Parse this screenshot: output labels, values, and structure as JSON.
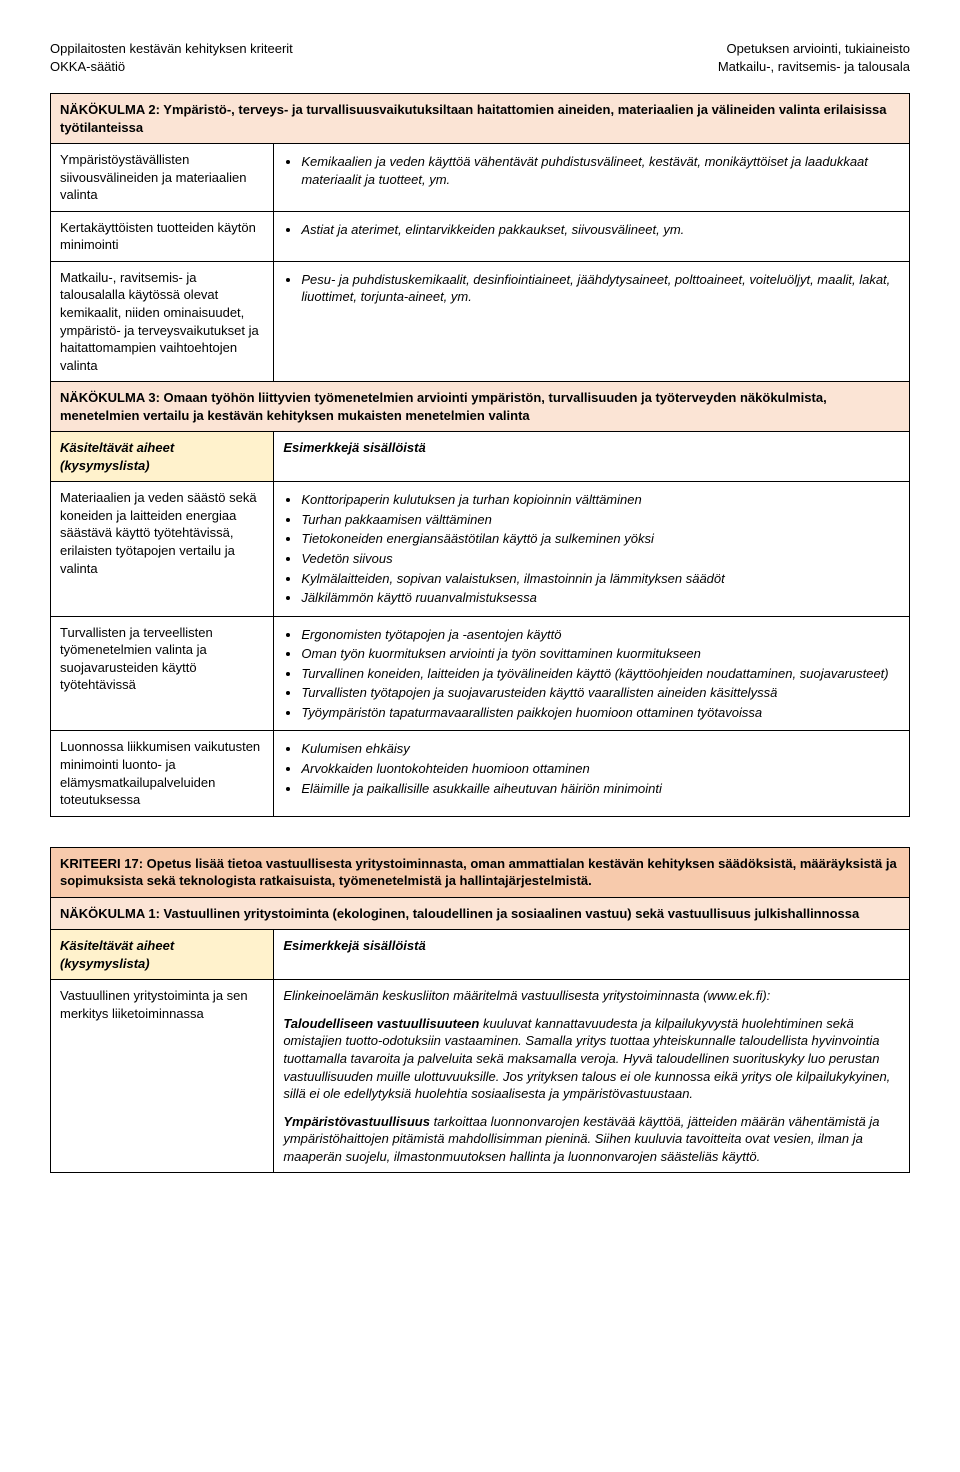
{
  "header": {
    "left_line1": "Oppilaitosten kestävän kehityksen kriteerit",
    "left_line2": "OKKA-säätiö",
    "right_line1": "Opetuksen arviointi, tukiaineisto",
    "right_line2": "Matkailu-, ravitsemis- ja talousala"
  },
  "table1": {
    "nakokulma2_title": "NÄKÖKULMA 2: Ympäristö-, terveys- ja turvallisuusvaikutuksiltaan haitattomien aineiden, materiaalien ja välineiden valinta erilaisissa työtilanteissa",
    "row1_left": "Ympäristöystävällisten siivousvälineiden ja materiaalien valinta",
    "row1_bullets": [
      "Kemikaalien ja veden käyttöä vähentävät puhdistusvälineet, kestävät, monikäyttöiset ja laadukkaat materiaalit ja tuotteet, ym."
    ],
    "row2_left": "Kertakäyttöisten tuotteiden käytön minimointi",
    "row2_bullets": [
      "Astiat ja aterimet, elintarvikkeiden pakkaukset, siivousvälineet, ym."
    ],
    "row3_left": "Matkailu-, ravitsemis- ja talousalalla käytössä olevat kemikaalit, niiden ominaisuudet, ympäristö- ja terveysvaikutukset ja haitattomampien vaihtoehtojen valinta",
    "row3_bullets": [
      "Pesu- ja puhdistuskemikaalit, desinfiointiaineet, jäähdytysaineet, polttoaineet, voiteluöljyt, maalit, lakat, liuottimet, torjunta-aineet, ym."
    ],
    "nakokulma3_title": "NÄKÖKULMA 3: Omaan työhön liittyvien työmenetelmien arviointi ympäristön, turvallisuuden ja työterveyden näkökulmista, menetelmien vertailu ja kestävän kehityksen mukaisten menetelmien valinta",
    "aiheet_label": "Käsiteltävät aiheet (kysymyslista)",
    "esimerkit_label": "Esimerkkejä sisällöistä",
    "row4_left": "Materiaalien ja veden säästö sekä koneiden ja laitteiden energiaa säästävä käyttö työtehtävissä, erilaisten työtapojen vertailu ja valinta",
    "row4_bullets": [
      "Konttoripaperin kulutuksen ja turhan kopioinnin välttäminen",
      "Turhan pakkaamisen välttäminen",
      "Tietokoneiden energiansäästötilan käyttö ja sulkeminen yöksi",
      "Vedetön siivous",
      "Kylmälaitteiden, sopivan valaistuksen, ilmastoinnin ja lämmityksen säädöt",
      "Jälkilämmön käyttö ruuanvalmistuksessa"
    ],
    "row5_left": "Turvallisten ja terveellisten työmenetelmien valinta ja suojavarusteiden käyttö työtehtävissä",
    "row5_bullets": [
      "Ergonomisten työtapojen ja -asentojen käyttö",
      "Oman työn kuormituksen arviointi ja työn sovittaminen kuormitukseen",
      "Turvallinen koneiden, laitteiden ja työvälineiden käyttö (käyttöohjeiden noudattaminen, suojavarusteet)",
      "Turvallisten työtapojen ja suojavarusteiden käyttö vaarallisten aineiden käsittelyssä",
      "Työympäristön tapaturmavaarallisten paikkojen huomioon ottaminen työtavoissa"
    ],
    "row6_left": "Luonnossa liikkumisen vaikutusten minimointi luonto- ja elämysmatkailupalveluiden toteutuksessa",
    "row6_bullets": [
      "Kulumisen ehkäisy",
      "Arvokkaiden luontokohteiden huomioon ottaminen",
      "Eläimille ja paikallisille asukkaille aiheutuvan häiriön minimointi"
    ]
  },
  "table2": {
    "kriteeri_title": "KRITEERI 17: Opetus lisää tietoa vastuullisesta yritystoiminnasta, oman ammattialan kestävän kehityksen säädöksistä, määräyksistä ja sopimuksista sekä teknologista ratkaisuista, työmenetelmistä ja hallintajärjestelmistä.",
    "nakokulma1_title": "NÄKÖKULMA 1: Vastuullinen yritystoiminta (ekologinen, taloudellinen ja sosiaalinen vastuu) sekä vastuullisuus julkishallinnossa",
    "aiheet_label": "Käsiteltävät aiheet (kysymyslista)",
    "esimerkit_label": "Esimerkkejä sisällöistä",
    "row1_left": "Vastuullinen yritystoiminta ja sen merkitys liiketoiminnassa",
    "intro": "Elinkeinoelämän keskusliiton määritelmä vastuullisesta yritystoiminnasta (www.ek.fi):",
    "taloudellinen_bold": "Taloudelliseen vastuullisuuteen",
    "taloudellinen_text": " kuuluvat kannattavuudesta ja kilpailukyvystä huolehtiminen sekä omistajien tuotto-odotuksiin vastaaminen. Samalla yritys tuottaa yhteiskunnalle taloudellista hyvinvointia tuottamalla tavaroita ja palveluita sekä maksamalla veroja. Hyvä taloudellinen suorituskyky luo perustan vastuullisuuden muille ulottuvuuksille. Jos yrityksen talous ei ole kunnossa eikä yritys ole kilpailukykyinen, sillä ei ole edellytyksiä huolehtia sosiaalisesta ja ympäristövastuustaan.",
    "ymparisto_bold": "Ympäristövastuullisuus",
    "ymparisto_text": " tarkoittaa luonnonvarojen kestävää käyttöä, jätteiden määrän vähentämistä ja ympäristöhaittojen pitämistä mahdollisimman pieninä. Siihen kuuluvia tavoitteita ovat vesien, ilman ja maaperän suojelu, ilmastonmuutoksen hallinta ja luonnonvarojen säästeliäs käyttö."
  }
}
